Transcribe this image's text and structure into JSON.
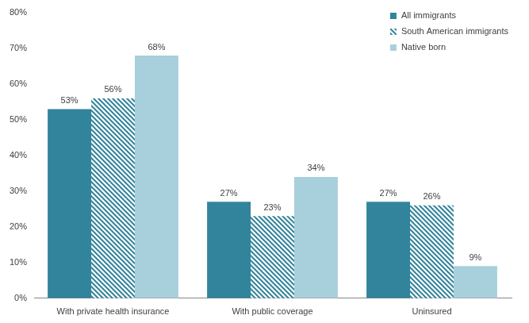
{
  "chart_data": {
    "type": "bar",
    "categories": [
      "With private health insurance",
      "With public coverage",
      "Uninsured"
    ],
    "series": [
      {
        "name": "All immigrants",
        "color": "#31849b",
        "values": [
          53,
          27,
          27
        ],
        "value_labels": [
          "53%",
          "27%",
          "27%"
        ]
      },
      {
        "name": "South American immigrants",
        "color": "#31849b",
        "values": [
          56,
          23,
          26
        ],
        "value_labels": [
          "56%",
          "23%",
          "26%"
        ]
      },
      {
        "name": "Native born",
        "color": "#a8cfdc",
        "values": [
          68,
          34,
          9
        ],
        "value_labels": [
          "68%",
          "34%",
          "9%"
        ]
      }
    ],
    "ylim": [
      0,
      80
    ],
    "yticks": [
      {
        "value": 0,
        "label": "0%"
      },
      {
        "value": 10,
        "label": "10%"
      },
      {
        "value": 20,
        "label": "20%"
      },
      {
        "value": 30,
        "label": "30%"
      },
      {
        "value": 40,
        "label": "40%"
      },
      {
        "value": 50,
        "label": "50%"
      },
      {
        "value": 60,
        "label": "60%"
      },
      {
        "value": 70,
        "label": "70%"
      },
      {
        "value": 80,
        "label": "80%"
      }
    ],
    "grid": false,
    "legend": "upper right",
    "data_labels": true
  }
}
